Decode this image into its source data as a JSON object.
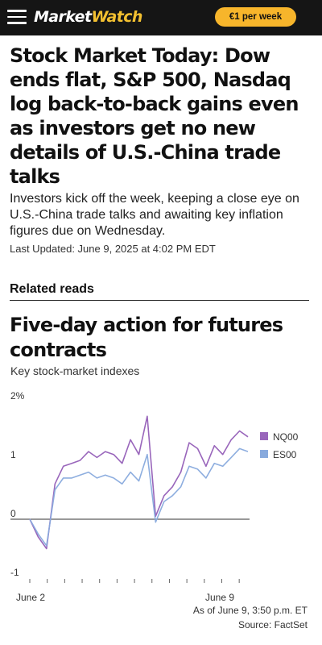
{
  "header": {
    "logo_part1": "Market",
    "logo_part2": "Watch",
    "subscribe_label": "€1 per week"
  },
  "article": {
    "headline": "Stock Market Today: Dow ends flat, S&P 500, Nasdaq log back-to-back gains even as investors get no new details of U.S.-China trade talks",
    "dek": "Investors kick off the week, keeping a close eye on U.S.-China trade talks and awaiting key inflation figures due on Wednesday.",
    "last_updated": "Last Updated: June 9, 2025 at 4:02 PM EDT"
  },
  "related": {
    "label": "Related reads"
  },
  "chart": {
    "title": "Five-day action for futures contracts",
    "subtitle": "Key stock-market indexes",
    "as_of": "As of June 9, 3:50 p.m. ET",
    "source": "Source: FactSet"
  },
  "chart_data": {
    "type": "line",
    "title": "Five-day action for futures contracts",
    "subtitle": "Key stock-market indexes",
    "xlabel": "",
    "ylabel": "",
    "ylim": [
      -1,
      2
    ],
    "y_ticks": [
      "2%",
      "1",
      "0",
      "-1"
    ],
    "x_tick_labels": [
      "June 2",
      "June 9"
    ],
    "grid": false,
    "legend_position": "right",
    "colors": {
      "NQ00": "#9966bb",
      "ES00": "#88aadd"
    },
    "x": [
      0,
      0.5,
      1,
      1.5,
      2,
      2.5,
      3,
      3.5,
      4,
      4.5,
      5,
      5.5,
      6,
      6.5,
      7,
      7.5,
      8,
      8.5,
      9,
      9.5,
      10,
      10.5,
      11,
      11.5,
      12,
      12.5,
      13
    ],
    "series": [
      {
        "name": "NQ00",
        "values": [
          0.0,
          -0.3,
          -0.5,
          0.6,
          0.9,
          0.95,
          1.0,
          1.15,
          1.05,
          1.15,
          1.1,
          0.95,
          1.35,
          1.1,
          1.75,
          0.05,
          0.4,
          0.55,
          0.8,
          1.3,
          1.2,
          0.9,
          1.25,
          1.1,
          1.35,
          1.5,
          1.4
        ]
      },
      {
        "name": "ES00",
        "values": [
          0.0,
          -0.25,
          -0.45,
          0.5,
          0.7,
          0.7,
          0.75,
          0.8,
          0.7,
          0.75,
          0.7,
          0.6,
          0.8,
          0.65,
          1.1,
          -0.05,
          0.3,
          0.4,
          0.55,
          0.9,
          0.85,
          0.7,
          0.95,
          0.9,
          1.05,
          1.2,
          1.15
        ]
      }
    ]
  }
}
